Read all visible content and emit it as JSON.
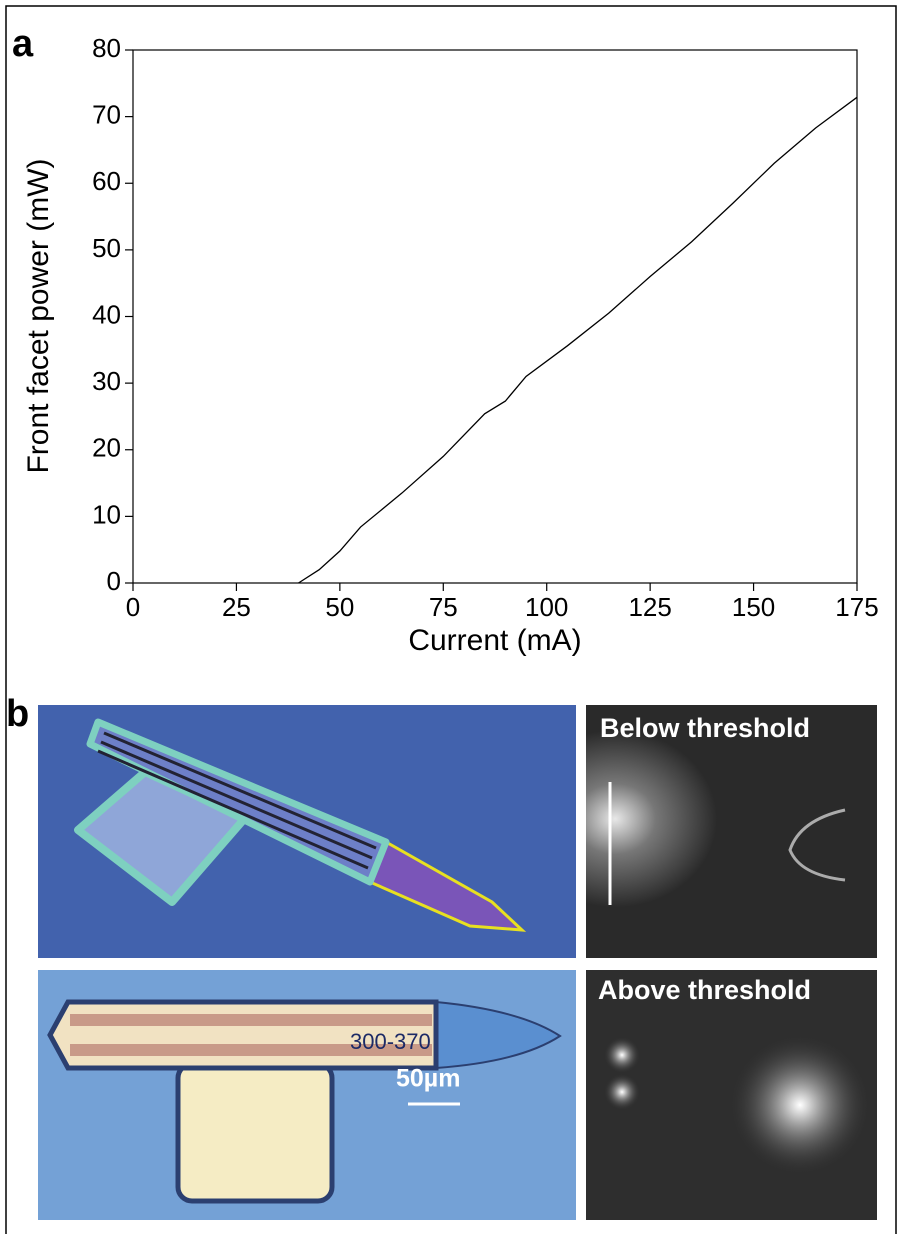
{
  "chart_data": {
    "type": "line",
    "panel_label": "a",
    "x_label": "Current (mA)",
    "y_label": "Front facet power (mW)",
    "x": [
      40,
      45,
      50,
      55,
      65,
      75,
      85,
      90,
      95,
      105,
      115,
      125,
      135,
      145,
      155,
      165,
      175
    ],
    "series": [
      {
        "color": "#000000",
        "values": [
          0,
          2,
          4.8,
          8.4,
          13.5,
          19,
          25.4,
          27.3,
          31,
          35.6,
          40.5,
          46,
          51.2,
          57,
          63,
          68.3,
          72.9
        ]
      }
    ],
    "xlim": [
      0,
      175
    ],
    "ylim": [
      0,
      80
    ],
    "xticks": [
      0,
      25,
      50,
      75,
      100,
      125,
      150,
      175
    ],
    "yticks": [
      0,
      10,
      20,
      30,
      40,
      50,
      60,
      70,
      80
    ]
  },
  "panel_b": {
    "label": "b",
    "below_threshold": "Below threshold",
    "above_threshold": "Above threshold",
    "device_label": "300-370",
    "scale_bar": "50µm"
  }
}
